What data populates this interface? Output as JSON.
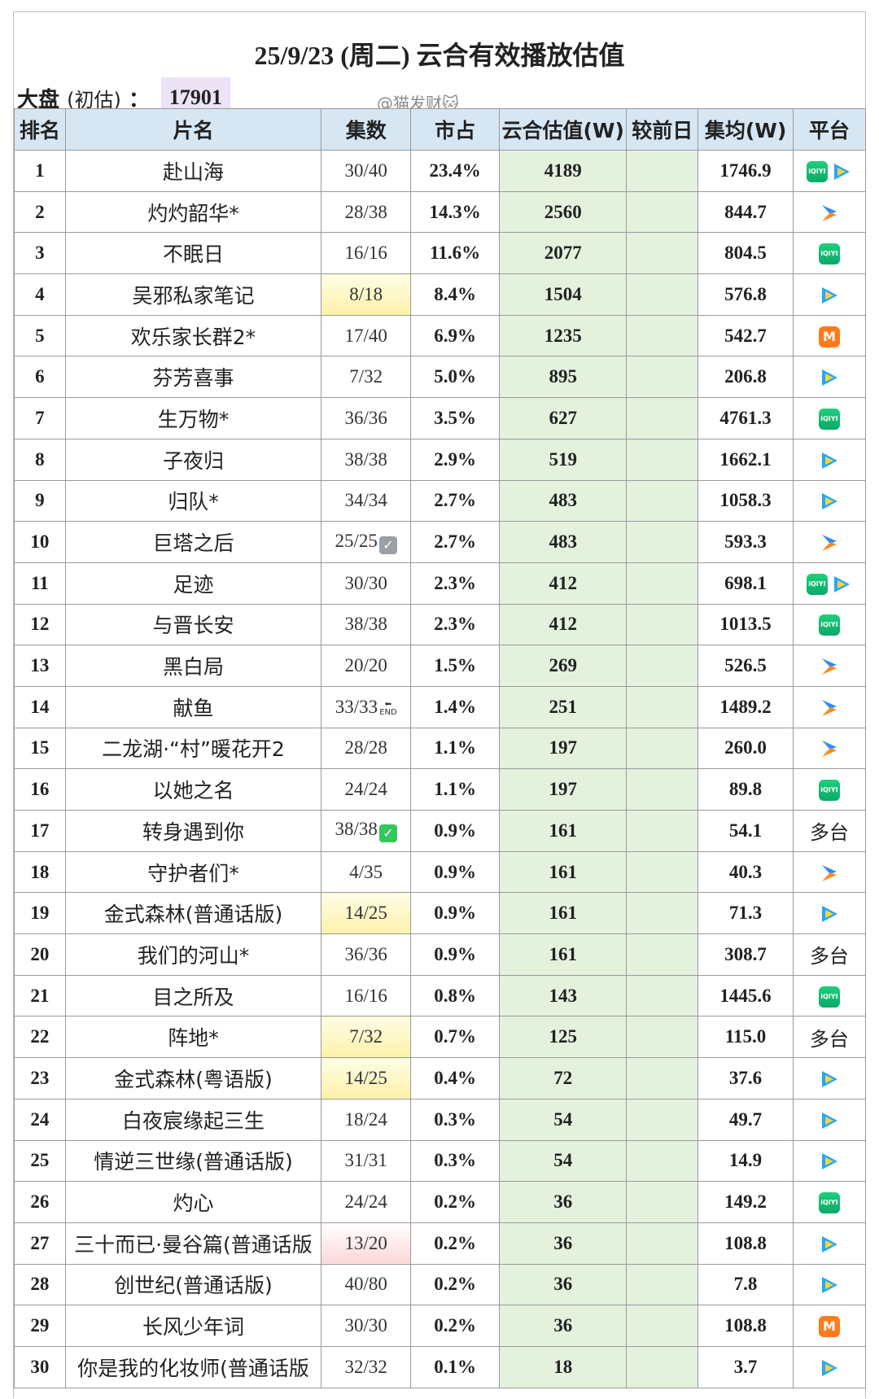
{
  "title": "25/9/23 (周二) 云合有效播放估值",
  "subtitle": {
    "label": "大盘",
    "note": "(初估)",
    "colon": "：",
    "value": "17901"
  },
  "watermark": "@猫发财🐱",
  "columns": [
    "排名",
    "片名",
    "集数",
    "市占",
    "云合估值(W)",
    "较前日",
    "集均(W)",
    "平台"
  ],
  "platform_names": {
    "iqiyi": "iQIYI",
    "mango": "M",
    "multi": "多台"
  },
  "rows": [
    {
      "rank": "1",
      "name": "赴山海",
      "episodes": "30/40",
      "share": "23.4%",
      "estimate": "4189",
      "avg": "1746.9",
      "platforms": [
        "iqiyi",
        "tencent"
      ]
    },
    {
      "rank": "2",
      "name": "灼灼韶华*",
      "episodes": "28/38",
      "share": "14.3%",
      "estimate": "2560",
      "avg": "844.7",
      "platforms": [
        "youku"
      ]
    },
    {
      "rank": "3",
      "name": "不眠日",
      "episodes": "16/16",
      "share": "11.6%",
      "estimate": "2077",
      "avg": "804.5",
      "platforms": [
        "iqiyi"
      ]
    },
    {
      "rank": "4",
      "name": "吴邪私家笔记",
      "episodes": "8/18",
      "ep_highlight": "yellow",
      "share": "8.4%",
      "estimate": "1504",
      "avg": "576.8",
      "platforms": [
        "tencent"
      ]
    },
    {
      "rank": "5",
      "name": "欢乐家长群2*",
      "episodes": "17/40",
      "share": "6.9%",
      "estimate": "1235",
      "avg": "542.7",
      "platforms": [
        "mango"
      ]
    },
    {
      "rank": "6",
      "name": "芬芳喜事",
      "episodes": "7/32",
      "share": "5.0%",
      "estimate": "895",
      "avg": "206.8",
      "platforms": [
        "tencent"
      ]
    },
    {
      "rank": "7",
      "name": "生万物*",
      "episodes": "36/36",
      "share": "3.5%",
      "estimate": "627",
      "avg": "4761.3",
      "platforms": [
        "iqiyi"
      ]
    },
    {
      "rank": "8",
      "name": "子夜归",
      "episodes": "38/38",
      "share": "2.9%",
      "estimate": "519",
      "avg": "1662.1",
      "platforms": [
        "tencent"
      ]
    },
    {
      "rank": "9",
      "name": "归队*",
      "episodes": "34/34",
      "share": "2.7%",
      "estimate": "483",
      "avg": "1058.3",
      "platforms": [
        "tencent"
      ]
    },
    {
      "rank": "10",
      "name": "巨塔之后",
      "episodes": "25/25",
      "ep_mark": "check-gray",
      "share": "2.7%",
      "estimate": "483",
      "avg": "593.3",
      "platforms": [
        "youku"
      ]
    },
    {
      "rank": "11",
      "name": "足迹",
      "episodes": "30/30",
      "share": "2.3%",
      "estimate": "412",
      "avg": "698.1",
      "platforms": [
        "iqiyi",
        "tencent"
      ]
    },
    {
      "rank": "12",
      "name": "与晋长安",
      "episodes": "38/38",
      "share": "2.3%",
      "estimate": "412",
      "avg": "1013.5",
      "platforms": [
        "iqiyi"
      ]
    },
    {
      "rank": "13",
      "name": "黑白局",
      "episodes": "20/20",
      "share": "1.5%",
      "estimate": "269",
      "avg": "526.5",
      "platforms": [
        "youku"
      ]
    },
    {
      "rank": "14",
      "name": "献鱼",
      "episodes": "33/33",
      "ep_mark": "end",
      "share": "1.4%",
      "estimate": "251",
      "avg": "1489.2",
      "platforms": [
        "youku"
      ]
    },
    {
      "rank": "15",
      "name": "二龙湖·“村”暖花开2",
      "episodes": "28/28",
      "share": "1.1%",
      "estimate": "197",
      "avg": "260.0",
      "platforms": [
        "youku"
      ]
    },
    {
      "rank": "16",
      "name": "以她之名",
      "episodes": "24/24",
      "share": "1.1%",
      "estimate": "197",
      "avg": "89.8",
      "platforms": [
        "iqiyi"
      ]
    },
    {
      "rank": "17",
      "name": "转身遇到你",
      "episodes": "38/38",
      "ep_mark": "check-green",
      "share": "0.9%",
      "estimate": "161",
      "avg": "54.1",
      "platforms": [
        "multi"
      ]
    },
    {
      "rank": "18",
      "name": "守护者们*",
      "episodes": "4/35",
      "share": "0.9%",
      "estimate": "161",
      "avg": "40.3",
      "platforms": [
        "youku"
      ]
    },
    {
      "rank": "19",
      "name": "金式森林(普通话版)",
      "episodes": "14/25",
      "ep_highlight": "yellow",
      "share": "0.9%",
      "estimate": "161",
      "avg": "71.3",
      "platforms": [
        "tencent"
      ]
    },
    {
      "rank": "20",
      "name": "我们的河山*",
      "episodes": "36/36",
      "share": "0.9%",
      "estimate": "161",
      "avg": "308.7",
      "platforms": [
        "multi"
      ]
    },
    {
      "rank": "21",
      "name": "目之所及",
      "episodes": "16/16",
      "share": "0.8%",
      "estimate": "143",
      "avg": "1445.6",
      "platforms": [
        "iqiyi"
      ]
    },
    {
      "rank": "22",
      "name": "阵地*",
      "episodes": "7/32",
      "ep_highlight": "yellow",
      "share": "0.7%",
      "estimate": "125",
      "avg": "115.0",
      "platforms": [
        "multi"
      ]
    },
    {
      "rank": "23",
      "name": "金式森林(粤语版)",
      "episodes": "14/25",
      "ep_highlight": "yellow",
      "share": "0.4%",
      "estimate": "72",
      "avg": "37.6",
      "platforms": [
        "tencent"
      ]
    },
    {
      "rank": "24",
      "name": "白夜宸缘起三生",
      "episodes": "18/24",
      "share": "0.3%",
      "estimate": "54",
      "avg": "49.7",
      "platforms": [
        "tencent"
      ]
    },
    {
      "rank": "25",
      "name": "情逆三世缘(普通话版)",
      "episodes": "31/31",
      "share": "0.3%",
      "estimate": "54",
      "avg": "14.9",
      "platforms": [
        "tencent"
      ]
    },
    {
      "rank": "26",
      "name": "灼心",
      "episodes": "24/24",
      "share": "0.2%",
      "estimate": "36",
      "avg": "149.2",
      "platforms": [
        "iqiyi"
      ]
    },
    {
      "rank": "27",
      "name": "三十而已·曼谷篇(普通话版",
      "episodes": "13/20",
      "ep_highlight": "pink",
      "share": "0.2%",
      "estimate": "36",
      "avg": "108.8",
      "platforms": [
        "tencent"
      ]
    },
    {
      "rank": "28",
      "name": "创世纪(普通话版)",
      "episodes": "40/80",
      "share": "0.2%",
      "estimate": "36",
      "avg": "7.8",
      "platforms": [
        "tencent"
      ]
    },
    {
      "rank": "29",
      "name": "长风少年词",
      "episodes": "30/30",
      "share": "0.2%",
      "estimate": "36",
      "avg": "108.8",
      "platforms": [
        "mango"
      ]
    },
    {
      "rank": "30",
      "name": "你是我的化妆师(普通话版",
      "episodes": "32/32",
      "share": "0.1%",
      "estimate": "18",
      "avg": "3.7",
      "platforms": [
        "tencent"
      ]
    }
  ],
  "colors": {
    "header_bg": "#d7e6f3",
    "estimate_bg": "#e4f1dd",
    "subtitle_value_bg": "#ece3f6",
    "highlight_yellow": "#fdf1a8",
    "highlight_pink": "#fbd7d7"
  }
}
